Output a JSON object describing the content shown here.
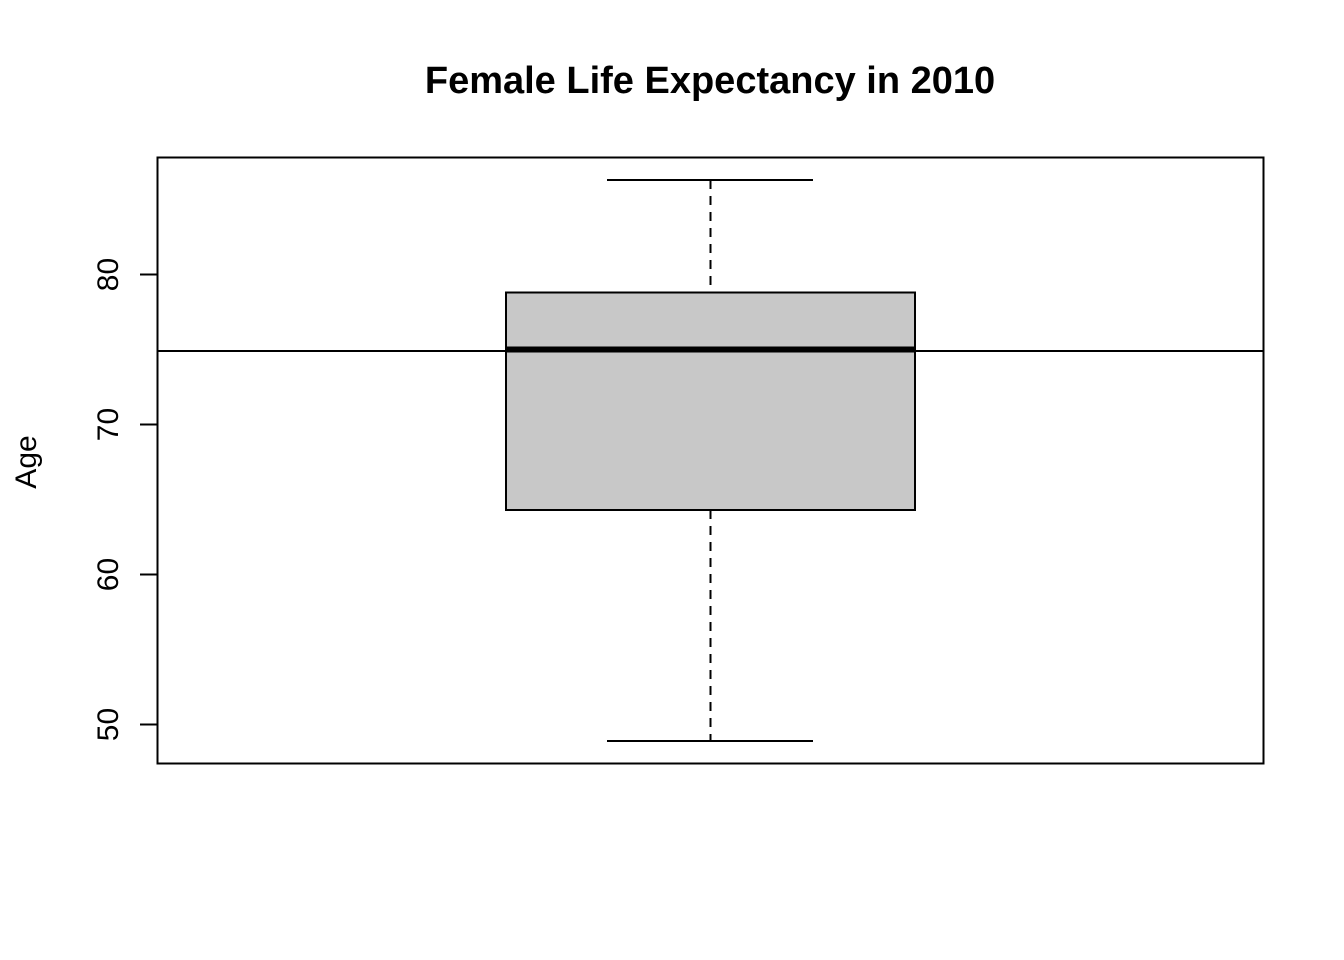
{
  "chart_data": {
    "type": "box",
    "title": "Female Life Expectancy in 2010",
    "xlabel": "",
    "ylabel": "Age",
    "ylim": [
      47.4,
      87.8
    ],
    "yticks": [
      50,
      60,
      70,
      80
    ],
    "grid": false,
    "box": {
      "min": 48.9,
      "q1": 64.3,
      "median": 75.0,
      "q3": 78.8,
      "max": 86.3,
      "fill": "#c8c8c8"
    },
    "reference_line": {
      "y": 74.9
    }
  }
}
